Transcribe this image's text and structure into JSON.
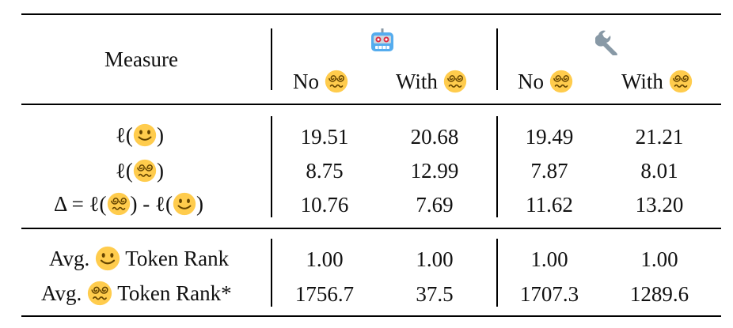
{
  "header": {
    "measure": "Measure",
    "group_robot_icon": "robot-face-icon",
    "group_wrench_icon": "wrench-icon",
    "col_no": "No",
    "col_with": "With",
    "dizzy_icon": "dizzy-face-icon"
  },
  "rows_loss": [
    {
      "label_prefix": "ℓ(",
      "label_suffix": ")",
      "icon": "slightly-smiling-face-icon",
      "values": [
        "19.51",
        "20.68",
        "19.49",
        "21.21"
      ]
    },
    {
      "label_prefix": "ℓ(",
      "label_suffix": ")",
      "icon": "dizzy-face-icon",
      "values": [
        "8.75",
        "12.99",
        "7.87",
        "8.01"
      ]
    },
    {
      "label_prefix": "Δ = ℓ(",
      "label_mid": ") - ℓ(",
      "label_suffix": ")",
      "icons": [
        "dizzy-face-icon",
        "slightly-smiling-face-icon"
      ],
      "values": [
        "10.76",
        "7.69",
        "11.62",
        "13.20"
      ]
    }
  ],
  "rows_rank": [
    {
      "label_prefix": "Avg.",
      "label_suffix": "Token Rank",
      "icon": "slightly-smiling-face-icon",
      "values": [
        "1.00",
        "1.00",
        "1.00",
        "1.00"
      ]
    },
    {
      "label_prefix": "Avg.",
      "label_suffix": "Token Rank*",
      "icon": "dizzy-face-icon",
      "values": [
        "1756.7",
        "37.5",
        "1707.3",
        "1289.6"
      ]
    }
  ],
  "colors": {
    "emoji_yellow": "#FFCC4D",
    "emoji_dark": "#664500",
    "robot_blue": "#55ACEE",
    "wrench_gray": "#8899A6"
  }
}
